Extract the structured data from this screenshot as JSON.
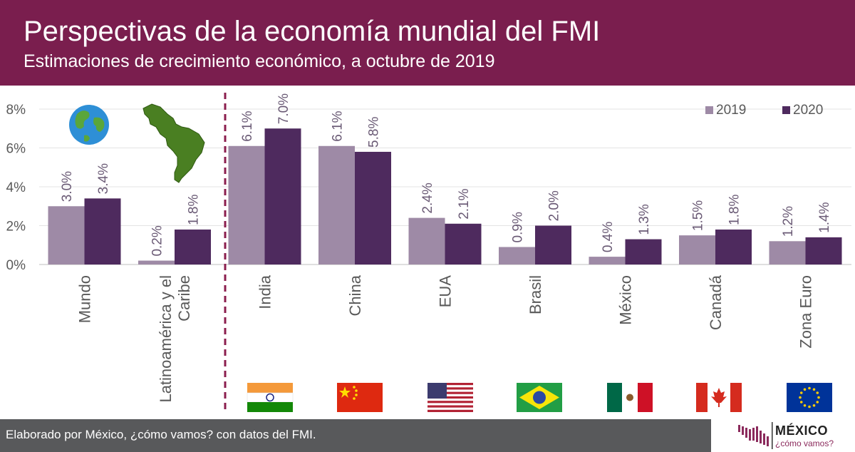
{
  "header": {
    "title": "Perspectivas de la economía mundial del FMI",
    "subtitle": "Estimaciones de crecimiento económico, a octubre de 2019"
  },
  "chart_data": {
    "type": "bar",
    "categories": [
      "Mundo",
      "Latinoamérica y el Caribe",
      "India",
      "China",
      "EUA",
      "Brasil",
      "México",
      "Canadá",
      "Zona Euro"
    ],
    "series": [
      {
        "name": "2019",
        "values": [
          3.0,
          0.2,
          6.1,
          6.1,
          2.4,
          0.9,
          0.4,
          1.5,
          1.2
        ],
        "color": "#9e8aa6"
      },
      {
        "name": "2020",
        "values": [
          3.4,
          1.8,
          7.0,
          5.8,
          2.1,
          2.0,
          1.3,
          1.8,
          1.4
        ],
        "color": "#4e2a5e"
      }
    ],
    "data_labels": [
      [
        "3.0%",
        "0.2%",
        "6.1%",
        "6.1%",
        "2.4%",
        "0.9%",
        "0.4%",
        "1.5%",
        "1.2%"
      ],
      [
        "3.4%",
        "1.8%",
        "7.0%",
        "5.8%",
        "2.1%",
        "2.0%",
        "1.3%",
        "1.8%",
        "1.4%"
      ]
    ],
    "y_ticks": [
      0,
      2,
      4,
      6,
      8
    ],
    "y_tick_labels": [
      "0%",
      "2%",
      "4%",
      "6%",
      "8%"
    ],
    "ylim": [
      0,
      8
    ],
    "xlabel": "",
    "ylabel": "",
    "grid": true,
    "legend": "top-right"
  },
  "footer": {
    "text": "Elaborado por México, ¿cómo vamos? con datos del FMI."
  },
  "logo": {
    "name": "MÉXICO",
    "tagline": "¿cómo vamos?"
  },
  "icons": [
    "globe-icon",
    "latin-america-map-icon",
    "flag-india-icon",
    "flag-china-icon",
    "flag-usa-icon",
    "flag-brazil-icon",
    "flag-mexico-icon",
    "flag-canada-icon",
    "flag-eu-icon"
  ]
}
